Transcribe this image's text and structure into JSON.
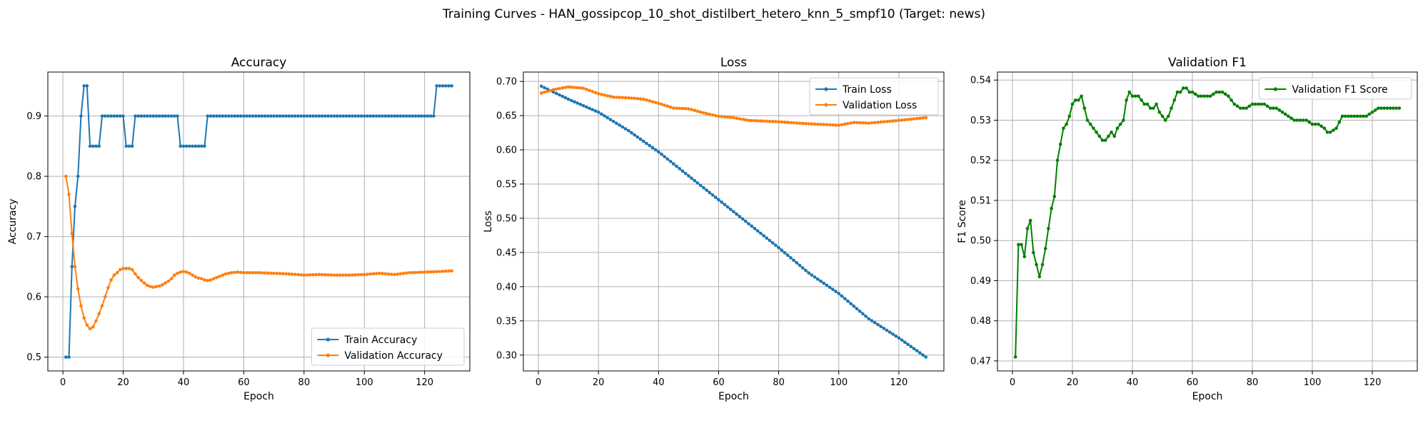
{
  "figure": {
    "suptitle": "Training Curves - HAN_gossipcop_10_shot_distilbert_hetero_knn_5_smpf10 (Target: news)"
  },
  "colors": {
    "blue": "#1f77b4",
    "orange": "#ff7f0e",
    "green": "#008000",
    "grid": "#b0b0b0"
  },
  "chart_data": [
    {
      "type": "line",
      "title": "Accuracy",
      "xlabel": "Epoch",
      "ylabel": "Accuracy",
      "xlim": [
        -5,
        135
      ],
      "ylim": [
        0.477,
        0.973
      ],
      "xticks": [
        0,
        20,
        40,
        60,
        80,
        100,
        120
      ],
      "yticks": [
        0.5,
        0.6,
        0.7,
        0.8,
        0.9
      ],
      "grid": true,
      "legend_position": "lower-right",
      "series": [
        {
          "name": "Train Accuracy",
          "color": "#1f77b4",
          "points": [
            [
              1,
              0.5
            ],
            [
              2,
              0.5
            ],
            [
              3,
              0.65
            ],
            [
              4,
              0.75
            ],
            [
              5,
              0.8
            ],
            [
              6,
              0.9
            ],
            [
              7,
              0.95
            ],
            [
              8,
              0.95
            ],
            [
              9,
              0.85
            ],
            [
              12,
              0.85
            ],
            [
              13,
              0.9
            ],
            [
              20,
              0.9
            ],
            [
              21,
              0.85
            ],
            [
              23,
              0.85
            ],
            [
              24,
              0.9
            ],
            [
              38,
              0.9
            ],
            [
              39,
              0.85
            ],
            [
              47,
              0.85
            ],
            [
              48,
              0.9
            ],
            [
              123,
              0.9
            ],
            [
              124,
              0.95
            ],
            [
              129,
              0.95
            ]
          ]
        },
        {
          "name": "Validation Accuracy",
          "color": "#ff7f0e",
          "points": [
            [
              1,
              0.8
            ],
            [
              2,
              0.77
            ],
            [
              3,
              0.705
            ],
            [
              4,
              0.65
            ],
            [
              5,
              0.613
            ],
            [
              6,
              0.585
            ],
            [
              7,
              0.565
            ],
            [
              8,
              0.553
            ],
            [
              9,
              0.547
            ],
            [
              10,
              0.55
            ],
            [
              11,
              0.56
            ],
            [
              12,
              0.572
            ],
            [
              13,
              0.585
            ],
            [
              14,
              0.6
            ],
            [
              15,
              0.615
            ],
            [
              16,
              0.628
            ],
            [
              17,
              0.636
            ],
            [
              18,
              0.64
            ],
            [
              19,
              0.645
            ],
            [
              20,
              0.647
            ],
            [
              21,
              0.647
            ],
            [
              22,
              0.647
            ],
            [
              23,
              0.645
            ],
            [
              24,
              0.638
            ],
            [
              25,
              0.632
            ],
            [
              26,
              0.627
            ],
            [
              27,
              0.623
            ],
            [
              28,
              0.619
            ],
            [
              29,
              0.617
            ],
            [
              30,
              0.616
            ],
            [
              31,
              0.617
            ],
            [
              32,
              0.618
            ],
            [
              33,
              0.62
            ],
            [
              34,
              0.623
            ],
            [
              35,
              0.626
            ],
            [
              36,
              0.63
            ],
            [
              37,
              0.636
            ],
            [
              38,
              0.639
            ],
            [
              39,
              0.641
            ],
            [
              40,
              0.642
            ],
            [
              41,
              0.641
            ],
            [
              42,
              0.639
            ],
            [
              43,
              0.636
            ],
            [
              44,
              0.633
            ],
            [
              45,
              0.631
            ],
            [
              46,
              0.63
            ],
            [
              47,
              0.628
            ],
            [
              48,
              0.627
            ],
            [
              49,
              0.628
            ],
            [
              50,
              0.63
            ],
            [
              52,
              0.634
            ],
            [
              54,
              0.638
            ],
            [
              56,
              0.64
            ],
            [
              58,
              0.641
            ],
            [
              60,
              0.64
            ],
            [
              65,
              0.64
            ],
            [
              70,
              0.639
            ],
            [
              75,
              0.638
            ],
            [
              80,
              0.636
            ],
            [
              85,
              0.637
            ],
            [
              90,
              0.636
            ],
            [
              95,
              0.636
            ],
            [
              100,
              0.637
            ],
            [
              105,
              0.639
            ],
            [
              110,
              0.637
            ],
            [
              115,
              0.64
            ],
            [
              120,
              0.641
            ],
            [
              125,
              0.642
            ],
            [
              129,
              0.643
            ]
          ]
        }
      ]
    },
    {
      "type": "line",
      "title": "Loss",
      "xlabel": "Epoch",
      "ylabel": "Loss",
      "xlim": [
        -5,
        135
      ],
      "ylim": [
        0.2768,
        0.7137
      ],
      "xticks": [
        0,
        20,
        40,
        60,
        80,
        100,
        120
      ],
      "yticks": [
        0.3,
        0.35,
        0.4,
        0.45,
        0.5,
        0.55,
        0.6,
        0.65,
        0.7
      ],
      "grid": true,
      "legend_position": "upper-right",
      "series": [
        {
          "name": "Train Loss",
          "color": "#1f77b4",
          "points": [
            [
              1,
              0.693
            ],
            [
              10,
              0.674
            ],
            [
              20,
              0.655
            ],
            [
              30,
              0.628
            ],
            [
              40,
              0.597
            ],
            [
              50,
              0.562
            ],
            [
              60,
              0.527
            ],
            [
              70,
              0.492
            ],
            [
              80,
              0.457
            ],
            [
              90,
              0.42
            ],
            [
              100,
              0.39
            ],
            [
              110,
              0.353
            ],
            [
              120,
              0.325
            ],
            [
              129,
              0.297
            ]
          ]
        },
        {
          "name": "Validation Loss",
          "color": "#ff7f0e",
          "points": [
            [
              1,
              0.683
            ],
            [
              5,
              0.688
            ],
            [
              10,
              0.692
            ],
            [
              15,
              0.69
            ],
            [
              20,
              0.682
            ],
            [
              25,
              0.677
            ],
            [
              30,
              0.676
            ],
            [
              35,
              0.674
            ],
            [
              40,
              0.668
            ],
            [
              45,
              0.661
            ],
            [
              50,
              0.66
            ],
            [
              55,
              0.654
            ],
            [
              60,
              0.649
            ],
            [
              65,
              0.647
            ],
            [
              70,
              0.643
            ],
            [
              80,
              0.641
            ],
            [
              90,
              0.638
            ],
            [
              100,
              0.636
            ],
            [
              105,
              0.64
            ],
            [
              110,
              0.639
            ],
            [
              120,
              0.643
            ],
            [
              129,
              0.647
            ]
          ]
        }
      ]
    },
    {
      "type": "line",
      "title": "Validation F1",
      "xlabel": "Epoch",
      "ylabel": "F1 Score",
      "xlim": [
        -5,
        135
      ],
      "ylim": [
        0.4675,
        0.542
      ],
      "xticks": [
        0,
        20,
        40,
        60,
        80,
        100,
        120
      ],
      "yticks": [
        0.47,
        0.48,
        0.49,
        0.5,
        0.51,
        0.52,
        0.53,
        0.54
      ],
      "grid": true,
      "legend_position": "upper-right",
      "series": [
        {
          "name": "Validation F1 Score",
          "color": "#008000",
          "points": [
            [
              1,
              0.471
            ],
            [
              2,
              0.499
            ],
            [
              3,
              0.499
            ],
            [
              4,
              0.496
            ],
            [
              5,
              0.503
            ],
            [
              6,
              0.505
            ],
            [
              7,
              0.497
            ],
            [
              8,
              0.494
            ],
            [
              9,
              0.491
            ],
            [
              10,
              0.494
            ],
            [
              11,
              0.498
            ],
            [
              12,
              0.503
            ],
            [
              13,
              0.508
            ],
            [
              14,
              0.511
            ],
            [
              15,
              0.52
            ],
            [
              16,
              0.524
            ],
            [
              17,
              0.528
            ],
            [
              18,
              0.529
            ],
            [
              19,
              0.531
            ],
            [
              20,
              0.534
            ],
            [
              21,
              0.535
            ],
            [
              22,
              0.535
            ],
            [
              23,
              0.536
            ],
            [
              24,
              0.533
            ],
            [
              25,
              0.53
            ],
            [
              26,
              0.529
            ],
            [
              27,
              0.528
            ],
            [
              28,
              0.527
            ],
            [
              29,
              0.526
            ],
            [
              30,
              0.525
            ],
            [
              31,
              0.525
            ],
            [
              32,
              0.526
            ],
            [
              33,
              0.527
            ],
            [
              34,
              0.526
            ],
            [
              35,
              0.528
            ],
            [
              36,
              0.529
            ],
            [
              37,
              0.53
            ],
            [
              38,
              0.535
            ],
            [
              39,
              0.537
            ],
            [
              40,
              0.536
            ],
            [
              41,
              0.536
            ],
            [
              42,
              0.536
            ],
            [
              43,
              0.535
            ],
            [
              44,
              0.534
            ],
            [
              45,
              0.534
            ],
            [
              46,
              0.533
            ],
            [
              47,
              0.533
            ],
            [
              48,
              0.534
            ],
            [
              49,
              0.532
            ],
            [
              50,
              0.531
            ],
            [
              51,
              0.53
            ],
            [
              52,
              0.531
            ],
            [
              53,
              0.533
            ],
            [
              54,
              0.535
            ],
            [
              55,
              0.537
            ],
            [
              56,
              0.537
            ],
            [
              57,
              0.538
            ],
            [
              58,
              0.538
            ],
            [
              59,
              0.537
            ],
            [
              60,
              0.537
            ],
            [
              62,
              0.536
            ],
            [
              64,
              0.536
            ],
            [
              66,
              0.536
            ],
            [
              68,
              0.537
            ],
            [
              70,
              0.537
            ],
            [
              72,
              0.536
            ],
            [
              74,
              0.534
            ],
            [
              76,
              0.533
            ],
            [
              78,
              0.533
            ],
            [
              80,
              0.534
            ],
            [
              82,
              0.534
            ],
            [
              84,
              0.534
            ],
            [
              86,
              0.533
            ],
            [
              88,
              0.533
            ],
            [
              90,
              0.532
            ],
            [
              92,
              0.531
            ],
            [
              94,
              0.53
            ],
            [
              96,
              0.53
            ],
            [
              98,
              0.53
            ],
            [
              100,
              0.529
            ],
            [
              102,
              0.529
            ],
            [
              104,
              0.528
            ],
            [
              105,
              0.527
            ],
            [
              106,
              0.527
            ],
            [
              108,
              0.528
            ],
            [
              110,
              0.531
            ],
            [
              112,
              0.531
            ],
            [
              114,
              0.531
            ],
            [
              116,
              0.531
            ],
            [
              118,
              0.531
            ],
            [
              120,
              0.532
            ],
            [
              122,
              0.533
            ],
            [
              124,
              0.533
            ],
            [
              126,
              0.533
            ],
            [
              128,
              0.533
            ],
            [
              129,
              0.533
            ]
          ]
        }
      ]
    }
  ]
}
